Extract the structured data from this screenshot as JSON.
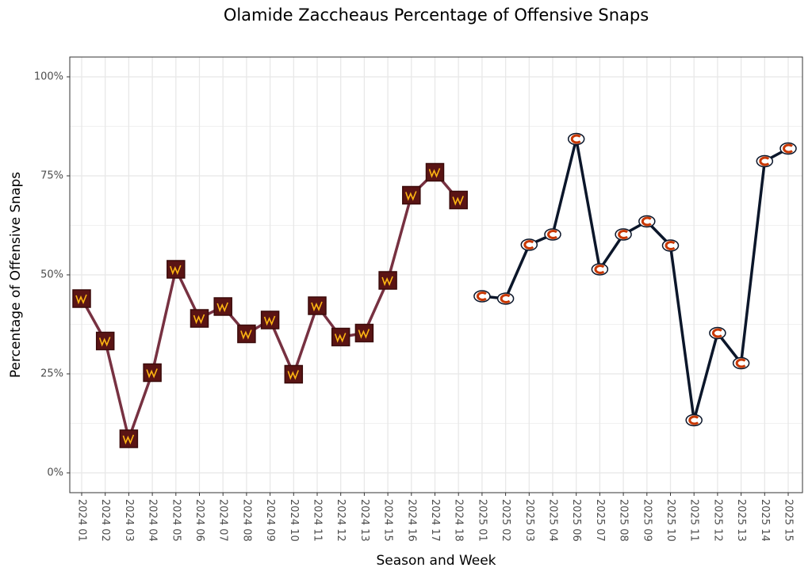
{
  "chart_data": {
    "type": "line",
    "title": "Olamide Zaccheaus Percentage of Offensive Snaps",
    "x_label": "Season and Week",
    "y_label": "Percentage of Offensive Snaps",
    "categories": [
      "2024 01",
      "2024 02",
      "2024 03",
      "2024 04",
      "2024 05",
      "2024 06",
      "2024 07",
      "2024 08",
      "2024 09",
      "2024 10",
      "2024 11",
      "2024 12",
      "2024 13",
      "2024 15",
      "2024 16",
      "2024 17",
      "2024 18",
      "2025 01",
      "2025 02",
      "2025 03",
      "2025 04",
      "2025 06",
      "2025 07",
      "2025 08",
      "2025 09",
      "2025 10",
      "2025 11",
      "2025 12",
      "2025 13",
      "2025 14",
      "2025 15"
    ],
    "series": [
      {
        "color": "#773141",
        "marker": "square",
        "values": [
          44.0,
          33.3,
          8.6,
          25.3,
          51.4,
          39.0,
          42.0,
          35.1,
          38.6,
          24.9,
          42.2,
          34.3,
          35.3,
          48.6,
          70.1,
          75.9,
          68.9,
          null,
          null,
          null,
          null,
          null,
          null,
          null,
          null,
          null,
          null,
          null,
          null,
          null,
          null
        ]
      },
      {
        "color": "#0b162a",
        "marker": "circle",
        "values": [
          null,
          null,
          null,
          null,
          null,
          null,
          null,
          null,
          null,
          null,
          null,
          null,
          null,
          null,
          null,
          null,
          null,
          44.6,
          44.0,
          57.6,
          60.2,
          84.3,
          51.4,
          60.2,
          63.5,
          57.4,
          13.3,
          35.3,
          27.7,
          78.7,
          81.9
        ]
      }
    ],
    "ylim": [
      -5,
      105
    ],
    "yticks": [
      {
        "value": 0,
        "label": "0%"
      },
      {
        "value": 25,
        "label": "25%"
      },
      {
        "value": 50,
        "label": "50%"
      },
      {
        "value": 75,
        "label": "75%"
      },
      {
        "value": 100,
        "label": "100%"
      }
    ],
    "y_minor_ticks": [
      12.5,
      37.5,
      62.5,
      87.5
    ],
    "grid": true
  }
}
